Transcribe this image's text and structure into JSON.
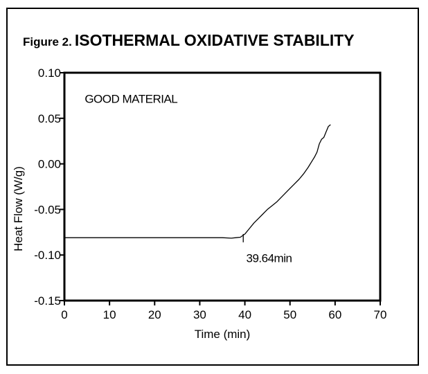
{
  "figure": {
    "prefix": "Figure 2.",
    "title": "ISOTHERMAL OXIDATIVE STABILITY"
  },
  "chart_data": {
    "type": "line",
    "title": "ISOTHERMAL OXIDATIVE STABILITY",
    "xlabel": "Time (min)",
    "ylabel": "Heat Flow (W/g)",
    "xlim": [
      0,
      70
    ],
    "ylim": [
      -0.15,
      0.1
    ],
    "xticks": [
      0,
      10,
      20,
      30,
      40,
      50,
      60,
      70
    ],
    "xtick_labels": [
      "0",
      "10",
      "20",
      "30",
      "40",
      "50",
      "60",
      "70"
    ],
    "yticks": [
      0.1,
      0.05,
      0.0,
      -0.05,
      -0.1,
      -0.15
    ],
    "ytick_labels": [
      "0.10",
      "0.05",
      "0.00",
      "-0.05",
      "-0.10",
      "-0.15"
    ],
    "grid": false,
    "series": [
      {
        "color": "#000000",
        "x": [
          0,
          10,
          20,
          30,
          35,
          37,
          38,
          39,
          40,
          41,
          42,
          43,
          44,
          45,
          46,
          47,
          48,
          49,
          50,
          51,
          52,
          53,
          54,
          55,
          55.5,
          56,
          56.5,
          57,
          57.5,
          58,
          58.5,
          59
        ],
        "y": [
          -0.081,
          -0.081,
          -0.081,
          -0.081,
          -0.081,
          -0.0815,
          -0.081,
          -0.0805,
          -0.077,
          -0.071,
          -0.065,
          -0.06,
          -0.055,
          -0.05,
          -0.046,
          -0.042,
          -0.037,
          -0.032,
          -0.027,
          -0.022,
          -0.017,
          -0.011,
          -0.004,
          0.004,
          0.008,
          0.013,
          0.022,
          0.027,
          0.029,
          0.035,
          0.041,
          0.043
        ]
      }
    ],
    "annotations": [
      {
        "text": "GOOD MATERIAL",
        "x": 4.5,
        "y": 0.067
      },
      {
        "text": "39.64min",
        "x": 40.3,
        "y": -0.108
      }
    ],
    "onset_marker": {
      "x": 39.64,
      "y": -0.0815
    }
  }
}
